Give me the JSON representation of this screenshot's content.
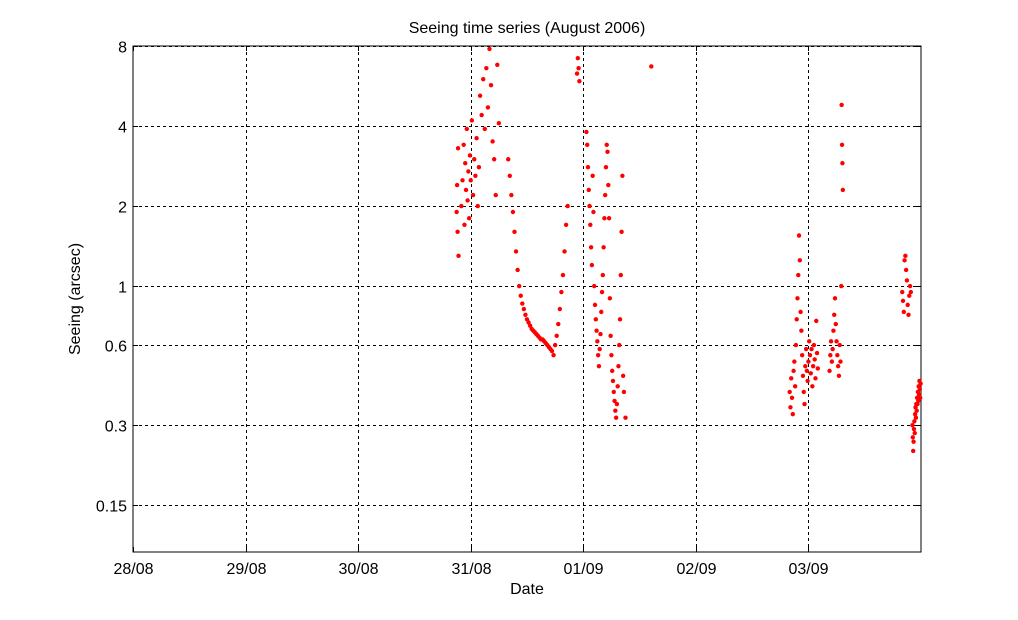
{
  "chart_data": {
    "type": "scatter",
    "title": "Seeing time series (August 2006)",
    "xlabel": "Date",
    "ylabel": "Seeing (arcsec)",
    "y_scale": "log2",
    "xlim": [
      "2006-08-28T00:00",
      "2006-09-04T00:00"
    ],
    "ylim": [
      0.1,
      8
    ],
    "x_ticks": [
      "28/08",
      "29/08",
      "30/08",
      "31/08",
      "01/09",
      "02/09",
      "03/09"
    ],
    "y_ticks": [
      "0.15",
      "0.3",
      "0.6",
      "1",
      "2",
      "4",
      "8"
    ],
    "grid": true,
    "marker_color": "#ff0000",
    "series": [
      {
        "points": [
          [
            "2006-08-30T21:00",
            1.9
          ],
          [
            "2006-08-30T21:06",
            2.4
          ],
          [
            "2006-08-30T21:12",
            1.6
          ],
          [
            "2006-08-30T21:18",
            3.3
          ],
          [
            "2006-08-30T21:24",
            1.3
          ],
          [
            "2006-08-30T22:00",
            2.0
          ],
          [
            "2006-08-30T22:15",
            2.5
          ],
          [
            "2006-08-30T22:30",
            3.4
          ],
          [
            "2006-08-30T22:40",
            1.7
          ],
          [
            "2006-08-30T22:50",
            2.9
          ],
          [
            "2006-08-30T23:00",
            2.3
          ],
          [
            "2006-08-30T23:10",
            3.9
          ],
          [
            "2006-08-30T23:20",
            2.1
          ],
          [
            "2006-08-30T23:30",
            2.7
          ],
          [
            "2006-08-30T23:40",
            1.8
          ],
          [
            "2006-08-30T23:50",
            3.1
          ],
          [
            "2006-08-31T00:00",
            2.5
          ],
          [
            "2006-08-31T00:15",
            4.2
          ],
          [
            "2006-08-31T00:30",
            2.2
          ],
          [
            "2006-08-31T00:45",
            3.0
          ],
          [
            "2006-08-31T01:00",
            2.6
          ],
          [
            "2006-08-31T01:15",
            3.6
          ],
          [
            "2006-08-31T01:30",
            2.0
          ],
          [
            "2006-08-31T01:45",
            2.8
          ],
          [
            "2006-08-31T02:00",
            5.2
          ],
          [
            "2006-08-31T02:20",
            4.4
          ],
          [
            "2006-08-31T02:40",
            6.0
          ],
          [
            "2006-08-31T03:00",
            3.9
          ],
          [
            "2006-08-31T03:20",
            6.6
          ],
          [
            "2006-08-31T03:40",
            4.7
          ],
          [
            "2006-08-31T04:00",
            7.8
          ],
          [
            "2006-08-31T04:20",
            5.7
          ],
          [
            "2006-08-31T04:40",
            3.5
          ],
          [
            "2006-08-31T05:00",
            3.0
          ],
          [
            "2006-08-31T05:20",
            2.2
          ],
          [
            "2006-08-31T05:40",
            6.8
          ],
          [
            "2006-08-31T06:00",
            4.1
          ],
          [
            "2006-08-31T08:00",
            3.0
          ],
          [
            "2006-08-31T08:20",
            2.6
          ],
          [
            "2006-08-31T08:40",
            2.2
          ],
          [
            "2006-08-31T09:00",
            1.9
          ],
          [
            "2006-08-31T09:20",
            1.6
          ],
          [
            "2006-08-31T09:40",
            1.35
          ],
          [
            "2006-08-31T10:00",
            1.15
          ],
          [
            "2006-08-31T10:20",
            1.0
          ],
          [
            "2006-08-31T10:40",
            0.92
          ],
          [
            "2006-08-31T11:00",
            0.86
          ],
          [
            "2006-08-31T11:20",
            0.82
          ],
          [
            "2006-08-31T11:40",
            0.78
          ],
          [
            "2006-08-31T12:00",
            0.75
          ],
          [
            "2006-08-31T12:20",
            0.73
          ],
          [
            "2006-08-31T12:40",
            0.71
          ],
          [
            "2006-08-31T13:00",
            0.69
          ],
          [
            "2006-08-31T13:20",
            0.68
          ],
          [
            "2006-08-31T13:40",
            0.67
          ],
          [
            "2006-08-31T14:00",
            0.66
          ],
          [
            "2006-08-31T14:20",
            0.65
          ],
          [
            "2006-08-31T14:40",
            0.64
          ],
          [
            "2006-08-31T15:00",
            0.63
          ],
          [
            "2006-08-31T15:20",
            0.63
          ],
          [
            "2006-08-31T15:40",
            0.62
          ],
          [
            "2006-08-31T16:00",
            0.61
          ],
          [
            "2006-08-31T16:20",
            0.6
          ],
          [
            "2006-08-31T16:40",
            0.59
          ],
          [
            "2006-08-31T17:00",
            0.58
          ],
          [
            "2006-08-31T17:20",
            0.57
          ],
          [
            "2006-08-31T17:40",
            0.55
          ],
          [
            "2006-08-31T18:00",
            0.6
          ],
          [
            "2006-08-31T18:20",
            0.65
          ],
          [
            "2006-08-31T18:40",
            0.72
          ],
          [
            "2006-08-31T19:00",
            0.82
          ],
          [
            "2006-08-31T19:20",
            0.95
          ],
          [
            "2006-08-31T19:40",
            1.1
          ],
          [
            "2006-08-31T20:00",
            1.35
          ],
          [
            "2006-08-31T20:20",
            1.7
          ],
          [
            "2006-08-31T20:40",
            2.0
          ],
          [
            "2006-08-31T22:40",
            6.3
          ],
          [
            "2006-08-31T22:50",
            7.2
          ],
          [
            "2006-08-31T23:00",
            6.6
          ],
          [
            "2006-08-31T23:10",
            5.9
          ],
          [
            "2006-09-01T00:40",
            3.8
          ],
          [
            "2006-09-01T00:50",
            3.4
          ],
          [
            "2006-09-01T01:00",
            2.8
          ],
          [
            "2006-09-01T01:10",
            2.3
          ],
          [
            "2006-09-01T01:20",
            2.0
          ],
          [
            "2006-09-01T01:30",
            1.7
          ],
          [
            "2006-09-01T01:40",
            1.4
          ],
          [
            "2006-09-01T01:50",
            1.2
          ],
          [
            "2006-09-01T02:00",
            2.6
          ],
          [
            "2006-09-01T02:10",
            1.9
          ],
          [
            "2006-09-01T02:20",
            1.0
          ],
          [
            "2006-09-01T02:30",
            0.85
          ],
          [
            "2006-09-01T02:40",
            0.75
          ],
          [
            "2006-09-01T02:50",
            0.68
          ],
          [
            "2006-09-01T03:00",
            0.62
          ],
          [
            "2006-09-01T03:10",
            0.55
          ],
          [
            "2006-09-01T03:20",
            0.5
          ],
          [
            "2006-09-01T03:30",
            0.58
          ],
          [
            "2006-09-01T03:40",
            0.66
          ],
          [
            "2006-09-01T03:50",
            0.8
          ],
          [
            "2006-09-01T04:00",
            0.95
          ],
          [
            "2006-09-01T04:10",
            1.1
          ],
          [
            "2006-09-01T04:20",
            1.4
          ],
          [
            "2006-09-01T04:30",
            1.8
          ],
          [
            "2006-09-01T04:40",
            2.2
          ],
          [
            "2006-09-01T04:50",
            2.8
          ],
          [
            "2006-09-01T05:00",
            3.4
          ],
          [
            "2006-09-01T05:10",
            3.2
          ],
          [
            "2006-09-01T05:20",
            2.4
          ],
          [
            "2006-09-01T05:30",
            1.8
          ],
          [
            "2006-09-01T05:40",
            0.9
          ],
          [
            "2006-09-01T05:50",
            0.65
          ],
          [
            "2006-09-01T06:00",
            0.55
          ],
          [
            "2006-09-01T06:10",
            0.48
          ],
          [
            "2006-09-01T06:20",
            0.44
          ],
          [
            "2006-09-01T06:30",
            0.4
          ],
          [
            "2006-09-01T06:40",
            0.37
          ],
          [
            "2006-09-01T06:50",
            0.34
          ],
          [
            "2006-09-01T07:00",
            0.32
          ],
          [
            "2006-09-01T07:10",
            0.36
          ],
          [
            "2006-09-01T07:20",
            0.42
          ],
          [
            "2006-09-01T07:30",
            0.5
          ],
          [
            "2006-09-01T07:40",
            0.6
          ],
          [
            "2006-09-01T07:50",
            0.75
          ],
          [
            "2006-09-01T08:00",
            1.1
          ],
          [
            "2006-09-01T08:10",
            1.6
          ],
          [
            "2006-09-01T08:20",
            2.6
          ],
          [
            "2006-09-01T08:30",
            0.46
          ],
          [
            "2006-09-01T08:40",
            0.4
          ],
          [
            "2006-09-01T09:00",
            0.32
          ],
          [
            "2006-09-01T14:30",
            6.7
          ],
          [
            "2006-09-02T20:00",
            0.4
          ],
          [
            "2006-09-02T20:10",
            0.35
          ],
          [
            "2006-09-02T20:20",
            0.45
          ],
          [
            "2006-09-02T20:30",
            0.38
          ],
          [
            "2006-09-02T20:40",
            0.33
          ],
          [
            "2006-09-02T20:50",
            0.48
          ],
          [
            "2006-09-02T21:00",
            0.52
          ],
          [
            "2006-09-02T21:10",
            0.42
          ],
          [
            "2006-09-02T21:20",
            0.6
          ],
          [
            "2006-09-02T21:30",
            0.75
          ],
          [
            "2006-09-02T21:40",
            0.9
          ],
          [
            "2006-09-02T21:50",
            1.1
          ],
          [
            "2006-09-02T22:00",
            1.55
          ],
          [
            "2006-09-02T22:10",
            1.25
          ],
          [
            "2006-09-02T22:20",
            0.8
          ],
          [
            "2006-09-02T22:30",
            0.68
          ],
          [
            "2006-09-02T22:40",
            0.55
          ],
          [
            "2006-09-02T22:50",
            0.46
          ],
          [
            "2006-09-02T23:00",
            0.4
          ],
          [
            "2006-09-02T23:10",
            0.36
          ],
          [
            "2006-09-02T23:20",
            0.5
          ],
          [
            "2006-09-02T23:30",
            0.58
          ],
          [
            "2006-09-02T23:40",
            0.48
          ],
          [
            "2006-09-02T23:50",
            0.44
          ],
          [
            "2006-09-03T00:00",
            0.52
          ],
          [
            "2006-09-03T00:10",
            0.62
          ],
          [
            "2006-09-03T00:20",
            0.55
          ],
          [
            "2006-09-03T00:30",
            0.47
          ],
          [
            "2006-09-03T00:40",
            0.58
          ],
          [
            "2006-09-03T00:50",
            0.42
          ],
          [
            "2006-09-03T01:00",
            0.5
          ],
          [
            "2006-09-03T01:10",
            0.6
          ],
          [
            "2006-09-03T01:20",
            0.53
          ],
          [
            "2006-09-03T01:30",
            0.45
          ],
          [
            "2006-09-03T01:40",
            0.74
          ],
          [
            "2006-09-03T01:50",
            0.56
          ],
          [
            "2006-09-03T02:00",
            0.49
          ],
          [
            "2006-09-03T04:30",
            0.48
          ],
          [
            "2006-09-03T04:40",
            0.55
          ],
          [
            "2006-09-03T04:50",
            0.62
          ],
          [
            "2006-09-03T05:00",
            0.52
          ],
          [
            "2006-09-03T05:10",
            0.58
          ],
          [
            "2006-09-03T05:20",
            0.68
          ],
          [
            "2006-09-03T05:30",
            0.78
          ],
          [
            "2006-09-03T05:40",
            0.9
          ],
          [
            "2006-09-03T05:50",
            0.72
          ],
          [
            "2006-09-03T06:00",
            0.62
          ],
          [
            "2006-09-03T06:10",
            0.55
          ],
          [
            "2006-09-03T06:20",
            0.5
          ],
          [
            "2006-09-03T06:30",
            0.46
          ],
          [
            "2006-09-03T06:40",
            0.6
          ],
          [
            "2006-09-03T06:50",
            0.52
          ],
          [
            "2006-09-03T07:00",
            1.0
          ],
          [
            "2006-09-03T07:05",
            4.8
          ],
          [
            "2006-09-03T07:10",
            3.4
          ],
          [
            "2006-09-03T07:15",
            2.9
          ],
          [
            "2006-09-03T07:20",
            2.3
          ],
          [
            "2006-09-03T20:00",
            0.95
          ],
          [
            "2006-09-03T20:10",
            0.88
          ],
          [
            "2006-09-03T20:20",
            0.8
          ],
          [
            "2006-09-03T20:30",
            1.25
          ],
          [
            "2006-09-03T20:40",
            1.3
          ],
          [
            "2006-09-03T20:50",
            1.15
          ],
          [
            "2006-09-03T21:00",
            1.05
          ],
          [
            "2006-09-03T21:10",
            0.85
          ],
          [
            "2006-09-03T21:20",
            0.78
          ],
          [
            "2006-09-03T21:30",
            0.92
          ],
          [
            "2006-09-03T21:40",
            1.0
          ],
          [
            "2006-09-03T21:50",
            0.95
          ],
          [
            "2006-09-03T22:10",
            0.3
          ],
          [
            "2006-09-03T22:15",
            0.27
          ],
          [
            "2006-09-03T22:20",
            0.24
          ],
          [
            "2006-09-03T22:25",
            0.26
          ],
          [
            "2006-09-03T22:30",
            0.29
          ],
          [
            "2006-09-03T22:35",
            0.31
          ],
          [
            "2006-09-03T22:40",
            0.28
          ],
          [
            "2006-09-03T22:45",
            0.33
          ],
          [
            "2006-09-03T22:50",
            0.35
          ],
          [
            "2006-09-03T22:55",
            0.32
          ],
          [
            "2006-09-03T23:00",
            0.36
          ],
          [
            "2006-09-03T23:05",
            0.34
          ],
          [
            "2006-09-03T23:10",
            0.38
          ],
          [
            "2006-09-03T23:15",
            0.36
          ],
          [
            "2006-09-03T23:20",
            0.4
          ],
          [
            "2006-09-03T23:25",
            0.37
          ],
          [
            "2006-09-03T23:30",
            0.42
          ],
          [
            "2006-09-03T23:35",
            0.39
          ],
          [
            "2006-09-03T23:40",
            0.44
          ],
          [
            "2006-09-03T23:45",
            0.41
          ],
          [
            "2006-09-03T23:50",
            0.38
          ],
          [
            "2006-09-03T23:55",
            0.43
          ]
        ]
      }
    ]
  }
}
